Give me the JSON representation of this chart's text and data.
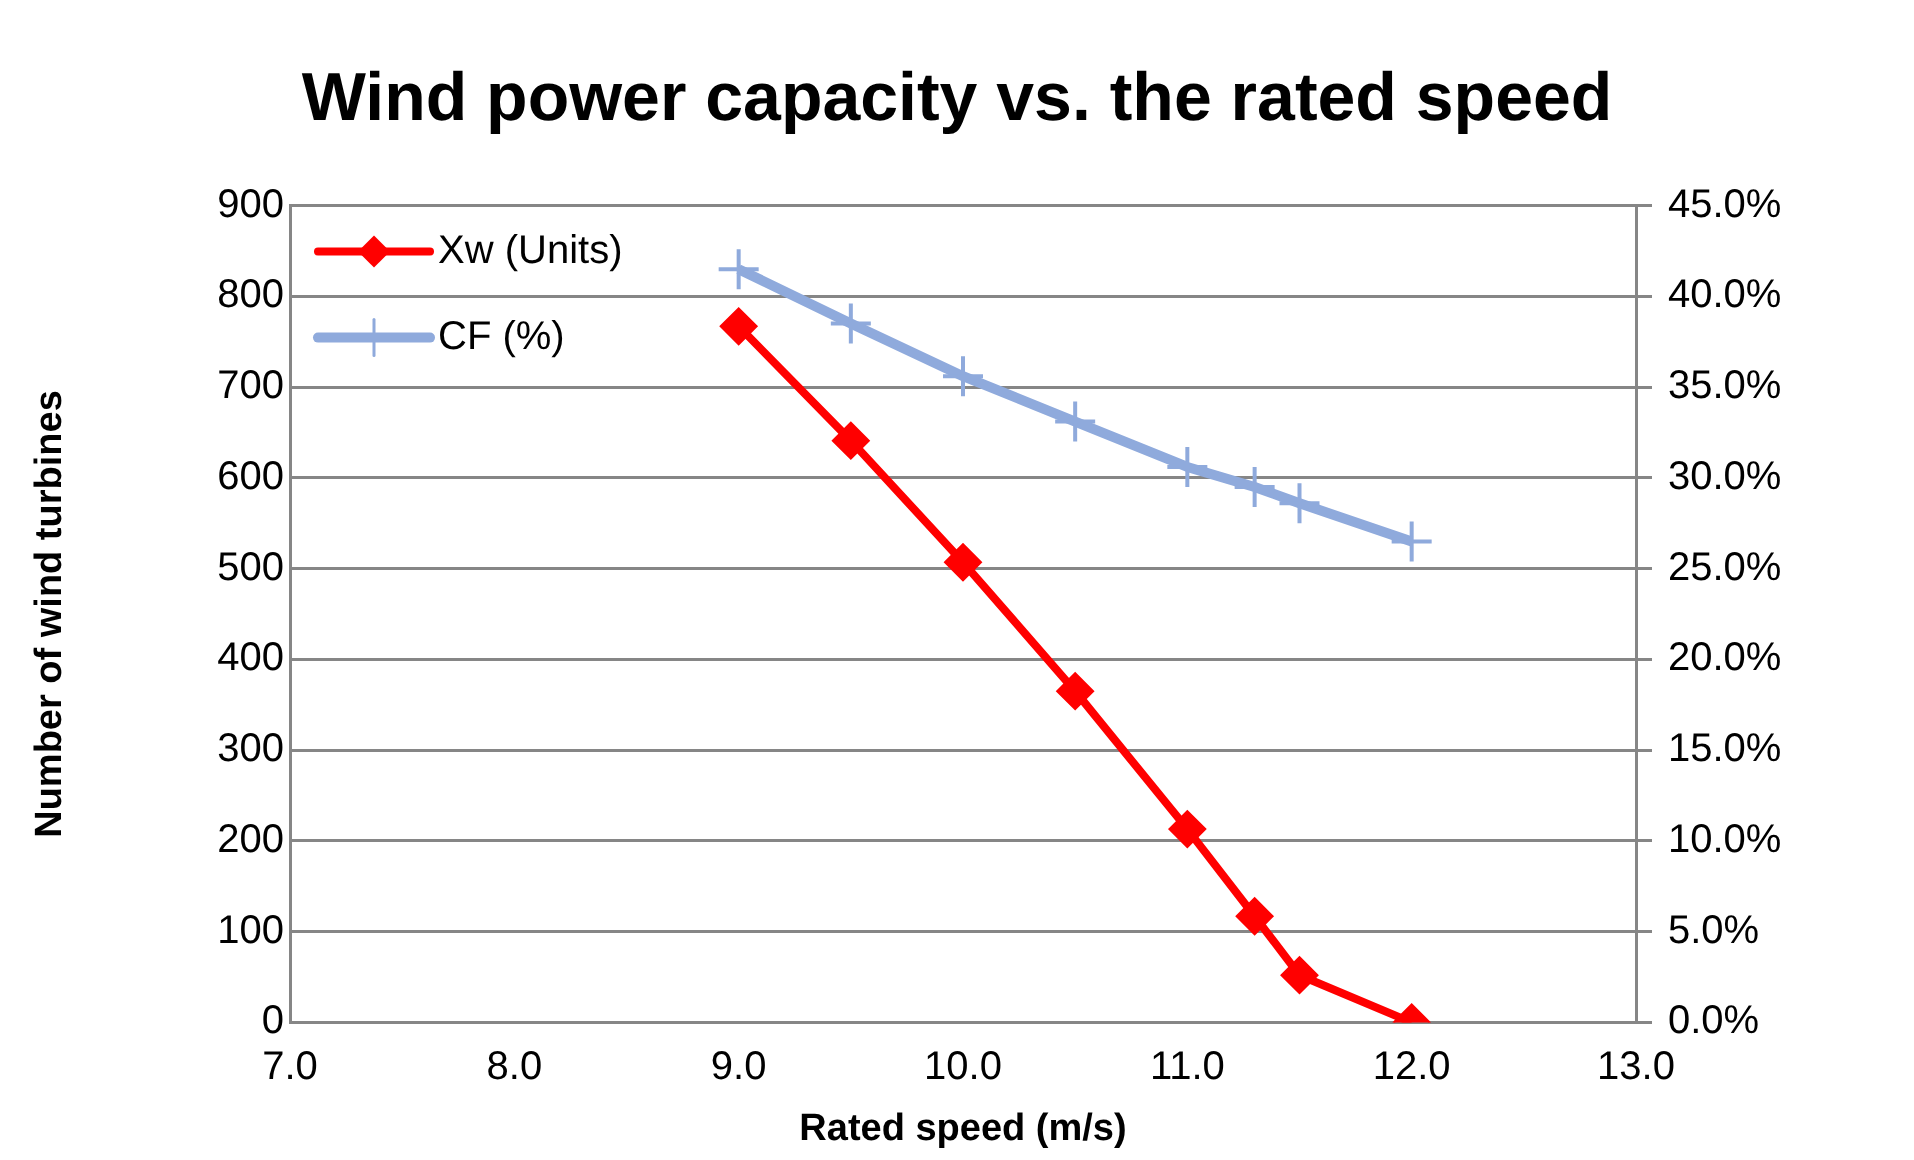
{
  "chart_data": {
    "type": "line",
    "title": "Wind power capacity vs. the rated speed",
    "xlabel": "Rated speed (m/s)",
    "ylabel": "Number of wind turbines",
    "x": [
      9.0,
      9.5,
      10.0,
      10.5,
      11.0,
      11.3,
      11.5,
      12.0
    ],
    "series": [
      {
        "name": "Xw (Units)",
        "color": "#ff0000",
        "marker": "diamond",
        "values": [
          767,
          641,
          507,
          365,
          213,
          117,
          52,
          0
        ]
      },
      {
        "name": "CF (%)",
        "color": "#8faadc",
        "marker": "cross",
        "axis": "y2",
        "values": [
          41.5,
          38.5,
          35.6,
          33.1,
          30.6,
          29.5,
          28.6,
          26.5
        ]
      }
    ],
    "xlim": [
      7.0,
      13.0
    ],
    "xticks": [
      {
        "value": 7,
        "label": "7.0"
      },
      {
        "value": 8,
        "label": "8.0"
      },
      {
        "value": 9,
        "label": "9.0"
      },
      {
        "value": 10,
        "label": "10.0"
      },
      {
        "value": 11,
        "label": "11.0"
      },
      {
        "value": 12,
        "label": "12.0"
      },
      {
        "value": 13,
        "label": "13.0"
      }
    ],
    "ylim": [
      0,
      900
    ],
    "yticks": [
      0,
      100,
      200,
      300,
      400,
      500,
      600,
      700,
      800,
      900
    ],
    "y2lim": [
      0,
      45
    ],
    "y2ticks": [
      {
        "value": 0,
        "label": "0.0%"
      },
      {
        "value": 5,
        "label": "5.0%"
      },
      {
        "value": 10,
        "label": "10.0%"
      },
      {
        "value": 15,
        "label": "15.0%"
      },
      {
        "value": 20,
        "label": "20.0%"
      },
      {
        "value": 25,
        "label": "25.0%"
      },
      {
        "value": 30,
        "label": "30.0%"
      },
      {
        "value": 35,
        "label": "35.0%"
      },
      {
        "value": 40,
        "label": "40.0%"
      },
      {
        "value": 45,
        "label": "45.0%"
      }
    ],
    "grid": "y",
    "legend": "top left",
    "line_style": "solid"
  }
}
